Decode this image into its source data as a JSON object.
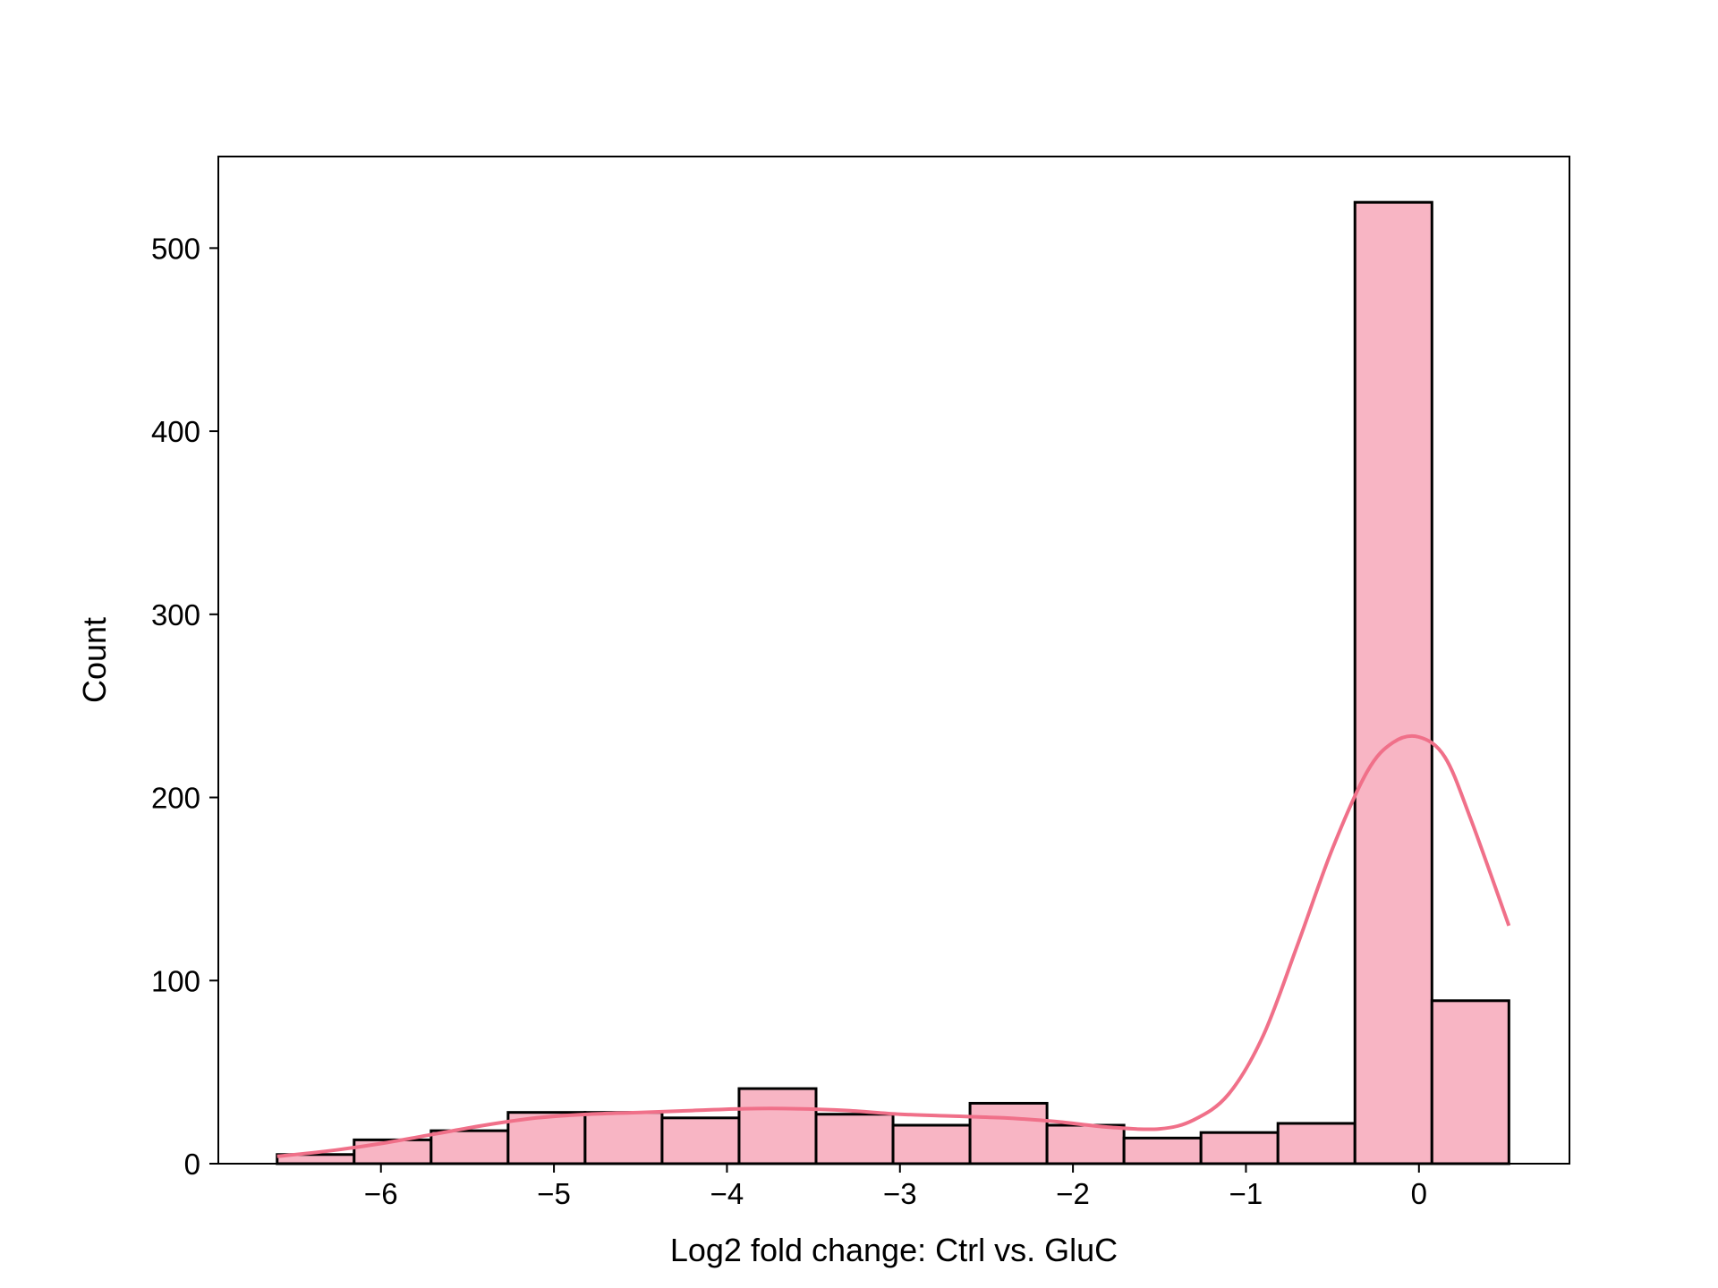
{
  "chart_data": {
    "type": "bar",
    "subtype": "histogram-with-kde",
    "title": "",
    "xlabel": "Log2 fold change: Ctrl vs. GluC",
    "ylabel": "Count",
    "xlim": [
      -6.94,
      0.87
    ],
    "ylim": [
      0,
      550
    ],
    "x_ticks": [
      -6,
      -5,
      -4,
      -3,
      -2,
      -1,
      0
    ],
    "x_tick_labels": [
      "−6",
      "−5",
      "−4",
      "−3",
      "−2",
      "−1",
      "0"
    ],
    "y_ticks": [
      0,
      100,
      200,
      300,
      400,
      500
    ],
    "y_tick_labels": [
      "0",
      "100",
      "200",
      "300",
      "400",
      "500"
    ],
    "grid": false,
    "legend": false,
    "bins": [
      {
        "x0": -6.6,
        "x1": -6.155,
        "count": 5
      },
      {
        "x0": -6.155,
        "x1": -5.71,
        "count": 13
      },
      {
        "x0": -5.71,
        "x1": -5.265,
        "count": 18
      },
      {
        "x0": -5.265,
        "x1": -4.82,
        "count": 28
      },
      {
        "x0": -4.82,
        "x1": -4.375,
        "count": 28
      },
      {
        "x0": -4.375,
        "x1": -3.93,
        "count": 25
      },
      {
        "x0": -3.93,
        "x1": -3.485,
        "count": 41
      },
      {
        "x0": -3.485,
        "x1": -3.04,
        "count": 27
      },
      {
        "x0": -3.04,
        "x1": -2.595,
        "count": 21
      },
      {
        "x0": -2.595,
        "x1": -2.15,
        "count": 33
      },
      {
        "x0": -2.15,
        "x1": -1.705,
        "count": 21
      },
      {
        "x0": -1.705,
        "x1": -1.26,
        "count": 14
      },
      {
        "x0": -1.26,
        "x1": -0.815,
        "count": 17
      },
      {
        "x0": -0.815,
        "x1": -0.37,
        "count": 22
      },
      {
        "x0": -0.37,
        "x1": 0.075,
        "count": 525
      },
      {
        "x0": 0.075,
        "x1": 0.52,
        "count": 89
      }
    ],
    "kde": {
      "x": [
        -6.6,
        -6.3,
        -6.0,
        -5.7,
        -5.4,
        -5.1,
        -4.8,
        -4.5,
        -4.2,
        -3.9,
        -3.6,
        -3.3,
        -3.0,
        -2.7,
        -2.4,
        -2.1,
        -1.8,
        -1.5,
        -1.3,
        -1.1,
        -0.9,
        -0.7,
        -0.5,
        -0.3,
        -0.15,
        0.0,
        0.15,
        0.3,
        0.52
      ],
      "y": [
        4,
        7,
        11,
        16,
        21,
        25,
        27,
        28,
        29,
        30,
        30,
        29,
        27,
        26,
        25,
        23,
        20,
        19,
        24,
        38,
        70,
        120,
        172,
        214,
        230,
        233,
        222,
        188,
        130
      ]
    },
    "colors": {
      "bar_fill": "#f8b5c4",
      "bar_edge": "#000000",
      "kde_line": "#f07089"
    }
  }
}
